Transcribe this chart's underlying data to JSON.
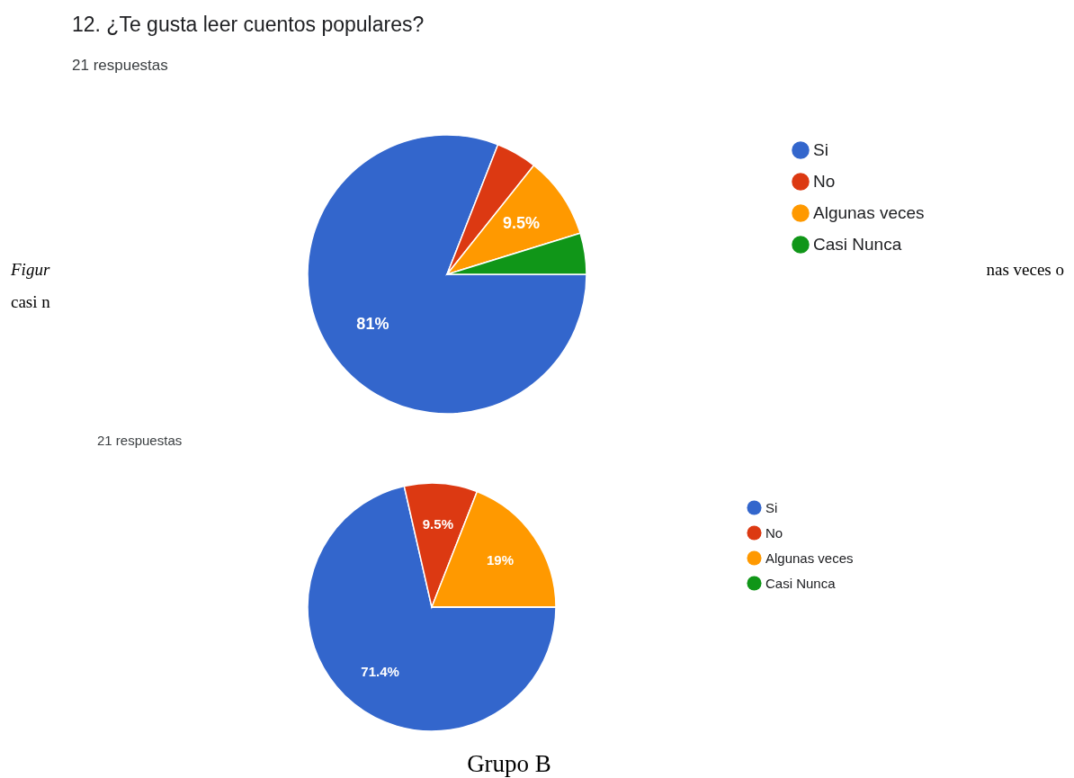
{
  "chart_data": [
    {
      "type": "pie",
      "title": "12. ¿Te gusta leer cuentos populares?",
      "subtitle": "21 respuestas",
      "categories": [
        "Si",
        "No",
        "Algunas veces",
        "Casi Nunca"
      ],
      "values": [
        80.95,
        4.76,
        9.52,
        4.77
      ],
      "value_labels": [
        "81%",
        null,
        "9.5%",
        null
      ],
      "colors": [
        "#3366cc",
        "#dc3912",
        "#ff9900",
        "#109618"
      ],
      "legend": "top right",
      "annotations": [
        "Figur",
        "nas veces o",
        "casi n"
      ]
    },
    {
      "type": "pie",
      "subtitle": "21 respuestas",
      "categories": [
        "Si",
        "No",
        "Algunas veces",
        "Casi Nunca"
      ],
      "values": [
        71.43,
        9.52,
        19.05,
        0
      ],
      "value_labels": [
        "71.4%",
        "9.5%",
        "19%",
        null
      ],
      "colors": [
        "#3366cc",
        "#dc3912",
        "#ff9900",
        "#109618"
      ],
      "legend": "top right",
      "annotations": [
        "Grupo B"
      ]
    }
  ]
}
